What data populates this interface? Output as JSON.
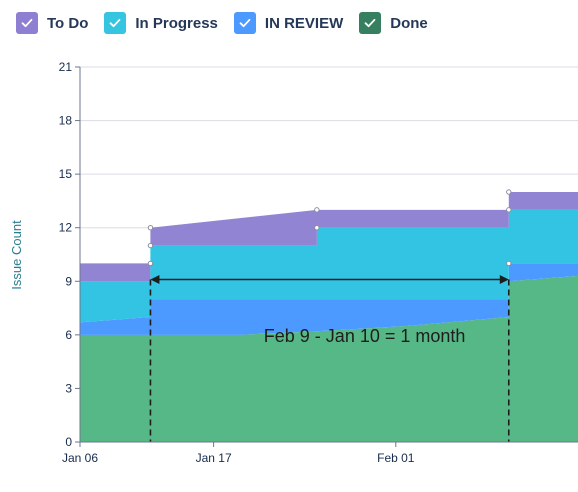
{
  "legend": {
    "items": [
      {
        "label": "To Do",
        "color": "#8f7fd2",
        "icon": "check-icon"
      },
      {
        "label": "In Progress",
        "color": "#36c5e0",
        "icon": "check-icon"
      },
      {
        "label": "IN REVIEW",
        "color": "#4c9aff",
        "icon": "check-icon"
      },
      {
        "label": "Done",
        "color": "#36805f",
        "icon": "check-icon"
      }
    ]
  },
  "chart_data": {
    "type": "area",
    "stacked": true,
    "ylabel": "Issue Count",
    "xlabel": "",
    "ylim": [
      0,
      21
    ],
    "yticks": [
      0,
      3,
      6,
      9,
      12,
      15,
      18,
      21
    ],
    "xticks": [
      {
        "label": "Jan 06",
        "day": 6
      },
      {
        "label": "Jan 17",
        "day": 17
      },
      {
        "label": "Feb 01",
        "day": 32
      }
    ],
    "x_day_range": [
      6,
      47
    ],
    "grid": true,
    "annotation": {
      "text": "Feb 9 - Jan 10 = 1 month",
      "from_day": 11.8,
      "to_day": 41.3,
      "y": 9.1
    },
    "series": [
      {
        "name": "Done",
        "fill": "#57b887",
        "upper": [
          [
            6,
            6
          ],
          [
            11.8,
            6
          ],
          [
            19,
            6
          ],
          [
            25.5,
            6.2
          ],
          [
            33,
            6.5
          ],
          [
            41.3,
            7
          ],
          [
            41.3,
            9
          ],
          [
            47,
            9.3
          ]
        ]
      },
      {
        "name": "IN REVIEW",
        "fill": "#4c9aff",
        "upper": [
          [
            6,
            6.7
          ],
          [
            11.8,
            7
          ],
          [
            11.8,
            8
          ],
          [
            25.5,
            8
          ],
          [
            41.3,
            8
          ],
          [
            41.3,
            10
          ],
          [
            47,
            10
          ]
        ]
      },
      {
        "name": "In Progress",
        "fill": "#33c4e3",
        "upper": [
          [
            6,
            9
          ],
          [
            11.8,
            9
          ],
          [
            11.8,
            11
          ],
          [
            25.5,
            11
          ],
          [
            25.5,
            12
          ],
          [
            41.3,
            12
          ],
          [
            41.3,
            13
          ],
          [
            47,
            13
          ]
        ]
      },
      {
        "name": "To Do",
        "fill": "#9185d3",
        "upper": [
          [
            6,
            10
          ],
          [
            11.8,
            10
          ],
          [
            11.8,
            12
          ],
          [
            25.5,
            13
          ],
          [
            41.3,
            13
          ],
          [
            41.3,
            14
          ],
          [
            47,
            14
          ]
        ]
      }
    ],
    "markers": [
      [
        11.8,
        10
      ],
      [
        11.8,
        11
      ],
      [
        11.8,
        12
      ],
      [
        25.5,
        12
      ],
      [
        25.5,
        13
      ],
      [
        41.3,
        10
      ],
      [
        41.3,
        13
      ],
      [
        41.3,
        14
      ]
    ]
  }
}
